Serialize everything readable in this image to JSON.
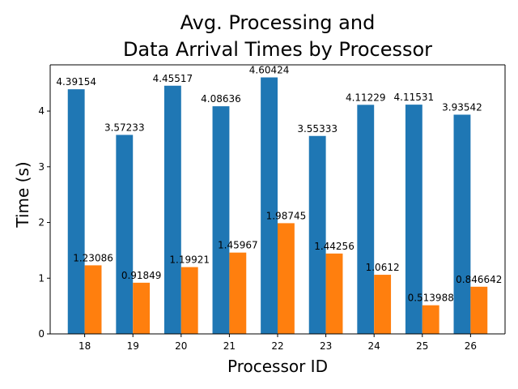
{
  "chart_data": {
    "type": "bar",
    "title_lines": [
      "Avg. Processing and",
      "Data Arrival Times by Processor"
    ],
    "xlabel": "Processor ID",
    "ylabel": "Time (s)",
    "categories": [
      "18",
      "19",
      "20",
      "21",
      "22",
      "23",
      "24",
      "25",
      "26"
    ],
    "ylim": [
      0,
      4.83
    ],
    "yticks": [
      0,
      1,
      2,
      3,
      4
    ],
    "grid": false,
    "legend": "none",
    "series": [
      {
        "color": "#1f77b4",
        "values": [
          4.39154,
          3.57233,
          4.45517,
          4.08636,
          4.60424,
          3.55333,
          4.11229,
          4.11531,
          3.93542
        ],
        "labels": [
          "4.39154",
          "3.57233",
          "4.45517",
          "4.08636",
          "4.60424",
          "3.55333",
          "4.11229",
          "4.11531",
          "3.93542"
        ]
      },
      {
        "color": "#ff7f0e",
        "values": [
          1.23086,
          0.91849,
          1.19921,
          1.45967,
          1.98745,
          1.44256,
          1.0612,
          0.513988,
          0.846642
        ],
        "labels": [
          "1.23086",
          "0.91849",
          "1.19921",
          "1.45967",
          "1.98745",
          "1.44256",
          "1.0612",
          "0.513988",
          "0.846642"
        ]
      }
    ]
  }
}
